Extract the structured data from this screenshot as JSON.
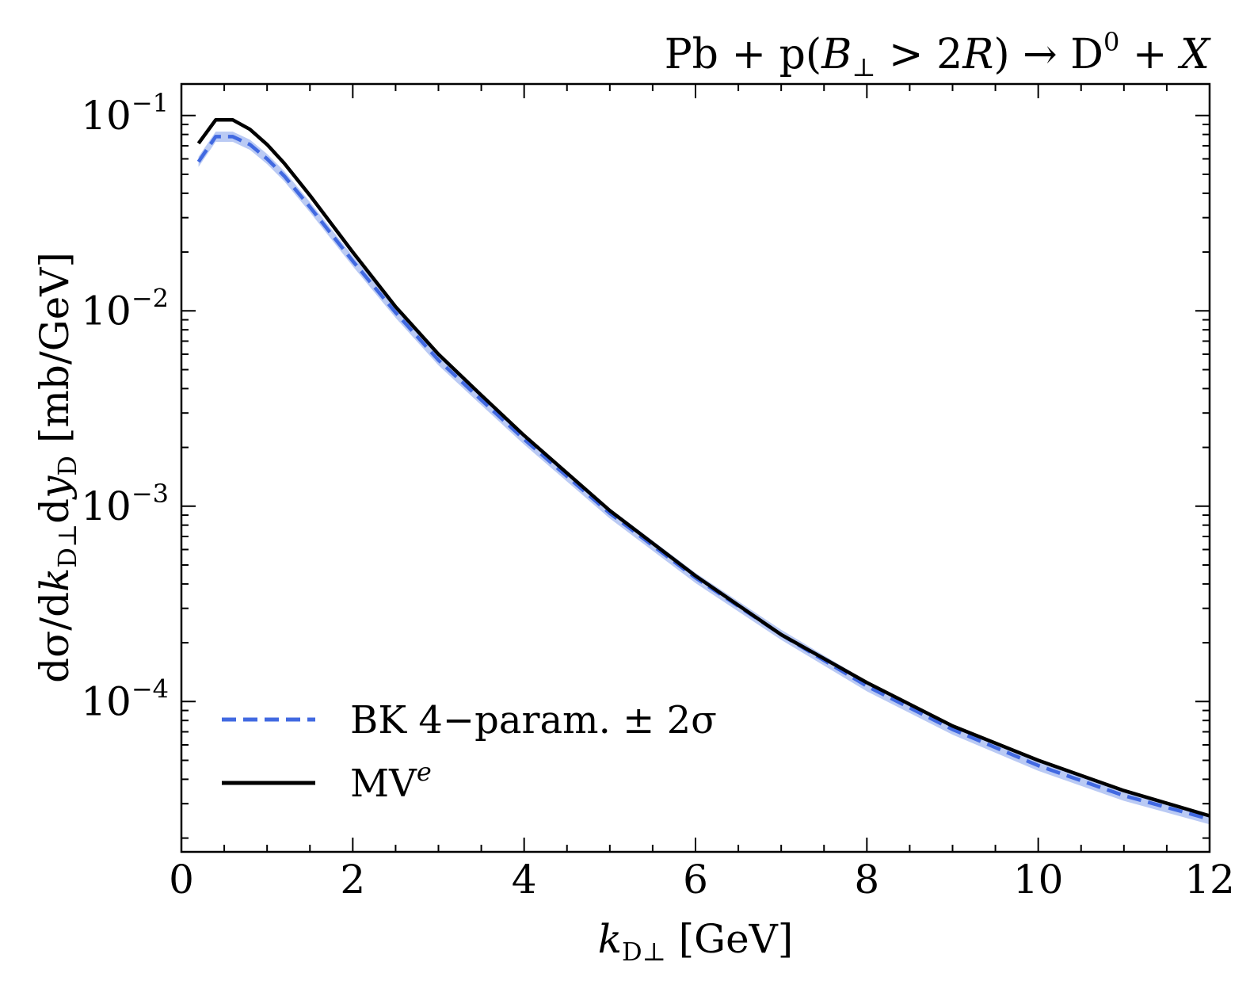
{
  "chart_data": {
    "type": "line",
    "title": "Pb + p(B⊥ > 2R) → D⁰ + X",
    "xlabel": "k_D⊥ [GeV]",
    "ylabel": "dσ/dk_D⊥ dy_D [mb/GeV]",
    "xlim": [
      0,
      12
    ],
    "ylim": [
      1.7e-05,
      0.145
    ],
    "yscale": "log",
    "grid": false,
    "legend_position": "bottom-left",
    "x_ticks": [
      "0",
      "2",
      "4",
      "6",
      "8",
      "10",
      "12"
    ],
    "y_ticks": [
      {
        "base": "10",
        "exp": "−1"
      },
      {
        "base": "10",
        "exp": "−2"
      },
      {
        "base": "10",
        "exp": "−3"
      },
      {
        "base": "10",
        "exp": "−4"
      }
    ],
    "series": [
      {
        "name": "BK 4−param. ± 2σ",
        "style": "dashed",
        "color": "#4169e1",
        "band_color": "#9db3f0",
        "x": [
          0.2,
          0.4,
          0.6,
          0.8,
          1.0,
          1.2,
          1.5,
          2.0,
          2.5,
          3.0,
          3.5,
          4.0,
          5.0,
          6.0,
          7.0,
          8.0,
          9.0,
          10.0,
          11.0,
          12.0
        ],
        "y": [
          0.058,
          0.078,
          0.078,
          0.071,
          0.06,
          0.049,
          0.034,
          0.018,
          0.0098,
          0.0056,
          0.0035,
          0.0022,
          0.00092,
          0.00043,
          0.00022,
          0.00012,
          7.2e-05,
          4.7e-05,
          3.3e-05,
          2.5e-05
        ]
      },
      {
        "name": "MV",
        "name_sup": "e",
        "style": "solid",
        "color": "#000000",
        "x": [
          0.2,
          0.4,
          0.6,
          0.8,
          1.0,
          1.2,
          1.5,
          2.0,
          2.5,
          3.0,
          3.5,
          4.0,
          5.0,
          6.0,
          7.0,
          8.0,
          9.0,
          10.0,
          11.0,
          12.0
        ],
        "y": [
          0.072,
          0.095,
          0.095,
          0.085,
          0.071,
          0.057,
          0.039,
          0.02,
          0.0105,
          0.006,
          0.0037,
          0.0023,
          0.00095,
          0.00044,
          0.00022,
          0.000125,
          7.5e-05,
          5e-05,
          3.5e-05,
          2.6e-05
        ]
      }
    ],
    "title_parts": {
      "a": "Pb + p(",
      "b": "B",
      "b_sub": "⊥",
      "c": " > 2",
      "d": "R",
      "e": ") → D",
      "e_sup": "0",
      "f": " + ",
      "g": "X"
    },
    "xlabel_parts": {
      "a": "k",
      "a_sub": "D⊥",
      "b": " [GeV]"
    },
    "ylabel_parts": {
      "a": "dσ/d",
      "b": "k",
      "b_sub": "D⊥",
      "c": "d",
      "d": "y",
      "d_sub": "D",
      "e": " [mb/GeV]"
    }
  }
}
